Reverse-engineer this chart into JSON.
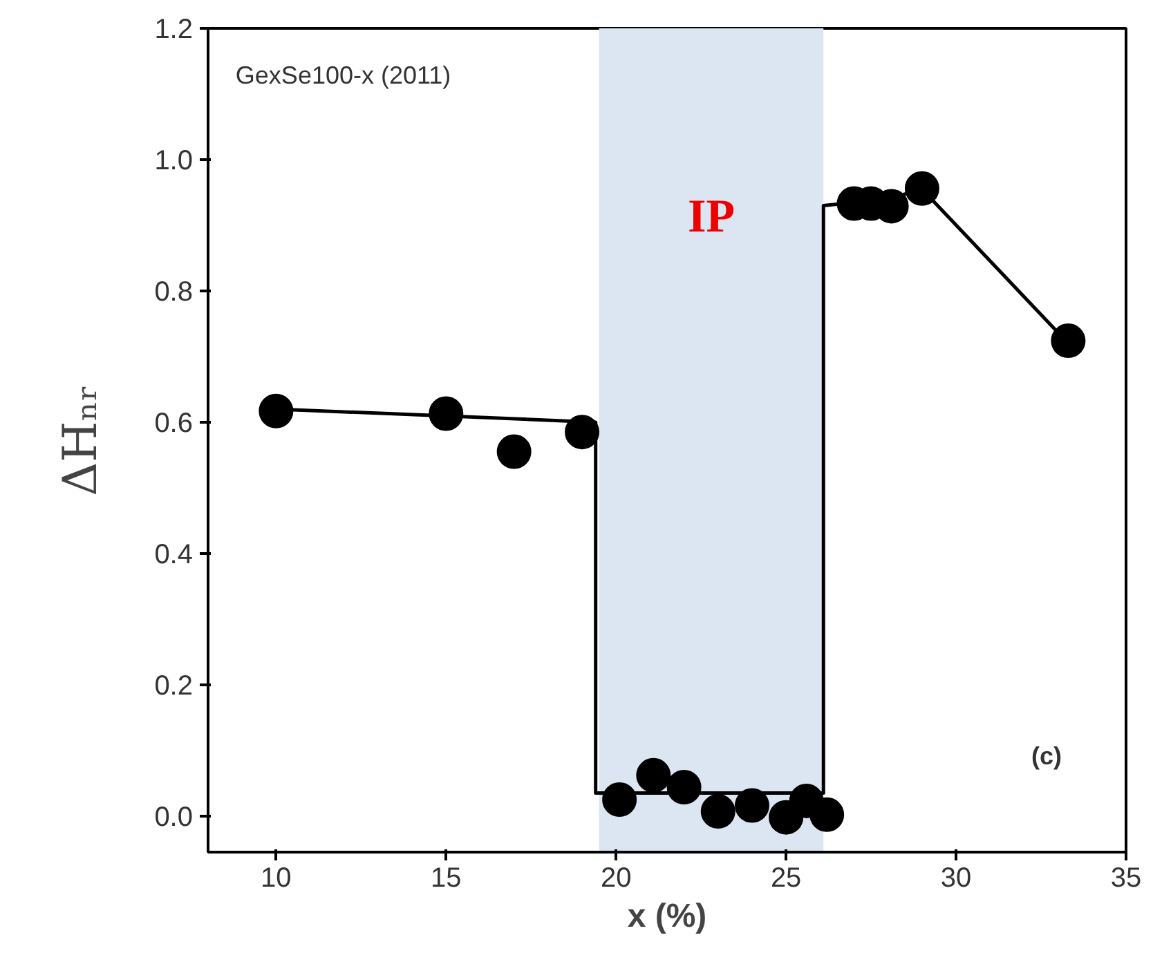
{
  "chart_data": {
    "type": "scatter",
    "xlabel": "x (%)",
    "ylabel": "ΔHₙᵣ",
    "marker": "circle",
    "grid": false,
    "xlim": [
      8,
      35
    ],
    "ylim": [
      -0.055,
      1.2
    ],
    "xticks": [
      10,
      15,
      20,
      25,
      30,
      35
    ],
    "yticks": [
      {
        "value": 0,
        "label": "0.0"
      },
      {
        "value": 0.2,
        "label": "0.2"
      },
      {
        "value": 0.4,
        "label": "0.4"
      },
      {
        "value": 0.6,
        "label": "0.6"
      },
      {
        "value": 0.8,
        "label": "0.8"
      },
      {
        "value": 1.0,
        "label": "1.0"
      },
      {
        "value": 1.2,
        "label": "1.2"
      }
    ],
    "series": [
      {
        "type": "line",
        "color": "#000000",
        "marker": "none",
        "x": [
          10,
          19.4,
          19.4,
          26.1,
          26.1,
          28,
          29,
          33.3
        ],
        "values": [
          0.62,
          0.6,
          0.035,
          0.035,
          0.93,
          0.94,
          0.955,
          0.72
        ]
      },
      {
        "color": "#000000",
        "x": [
          10,
          15,
          17,
          19,
          20.1,
          21.1,
          22,
          23,
          24,
          25,
          25.6,
          26.2,
          27,
          27.5,
          28.1,
          29,
          33.3
        ],
        "values": [
          0.617,
          0.613,
          0.555,
          0.585,
          0.025,
          0.062,
          0.044,
          0.007,
          0.016,
          -0.002,
          0.023,
          0.002,
          0.933,
          0.933,
          0.929,
          0.956,
          0.724
        ]
      }
    ],
    "bands": [
      {
        "axis": "x",
        "from": 19.5,
        "to": 26.1,
        "label": "IP",
        "color": "#dce6f2"
      }
    ],
    "annotations": [
      "GexSe100-x (2011)",
      "(c)"
    ]
  }
}
